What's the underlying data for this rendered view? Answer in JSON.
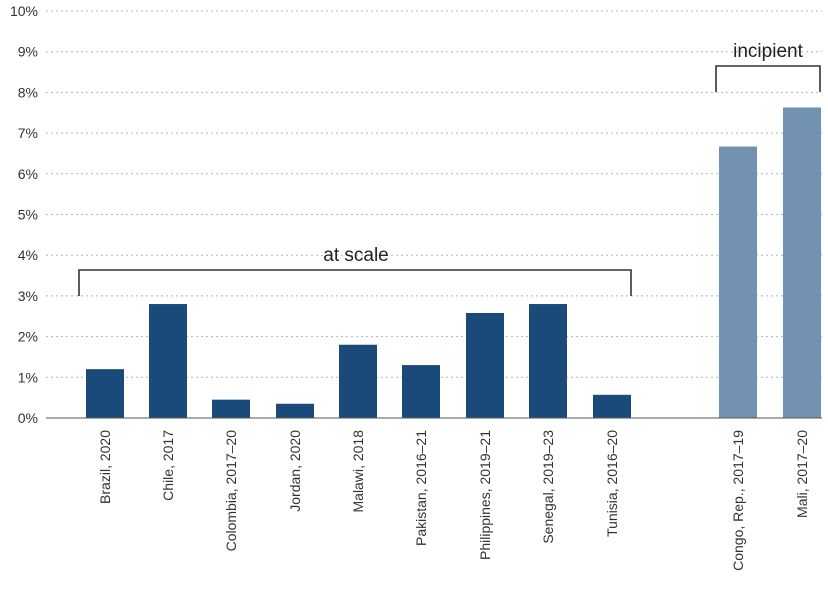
{
  "chart_data": {
    "type": "bar",
    "title": "",
    "xlabel": "",
    "ylabel": "",
    "ylim": [
      0,
      10
    ],
    "yticks": [
      "0%",
      "1%",
      "2%",
      "3%",
      "4%",
      "5%",
      "6%",
      "7%",
      "8%",
      "9%",
      "10%"
    ],
    "grid": true,
    "categories": [
      "Brazil, 2020",
      "Chile, 2017",
      "Colombia, 2017–20",
      "Jordan, 2020",
      "Malawi, 2018",
      "Pakistan, 2016–21",
      "Philippines, 2019–21",
      "Senegal, 2019–23",
      "Tunisia, 2016–20",
      "Congo, Rep., 2017–19",
      "Mali, 2017–20"
    ],
    "values": [
      1.2,
      2.8,
      0.45,
      0.35,
      1.8,
      1.3,
      2.58,
      2.8,
      0.57,
      6.67,
      7.63
    ],
    "groups": [
      {
        "label": "at scale",
        "categories": [
          0,
          1,
          2,
          3,
          4,
          5,
          6,
          7,
          8
        ],
        "color": "#1a4a7a"
      },
      {
        "label": "incipient",
        "categories": [
          9,
          10
        ],
        "color": "#7391b0"
      }
    ]
  }
}
